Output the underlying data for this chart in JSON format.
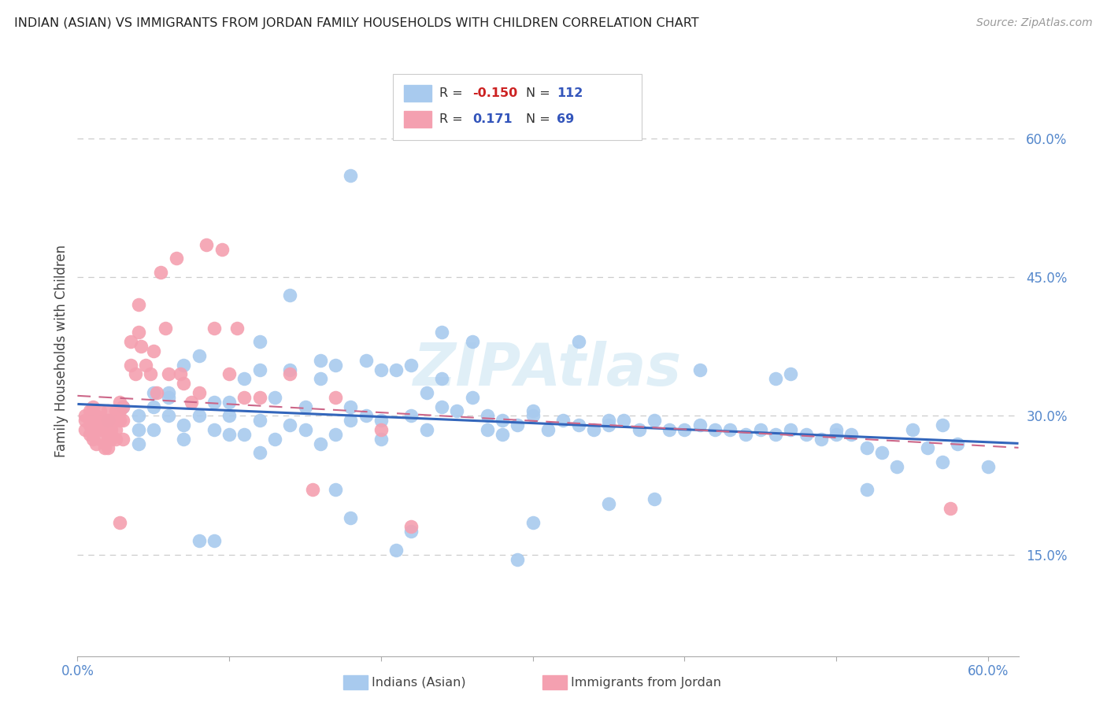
{
  "title": "INDIAN (ASIAN) VS IMMIGRANTS FROM JORDAN FAMILY HOUSEHOLDS WITH CHILDREN CORRELATION CHART",
  "source": "Source: ZipAtlas.com",
  "ylabel": "Family Households with Children",
  "xlim": [
    0.0,
    0.62
  ],
  "ylim": [
    0.04,
    0.7
  ],
  "ytick_labels_right": [
    "60.0%",
    "45.0%",
    "30.0%",
    "15.0%"
  ],
  "ytick_positions_right": [
    0.6,
    0.45,
    0.3,
    0.15
  ],
  "background_color": "#ffffff",
  "blue_color": "#a8caee",
  "pink_color": "#f4a0b0",
  "trend_blue_color": "#3366bb",
  "trend_pink_color": "#cc6688",
  "watermark": "ZIPAtlas",
  "blue_scatter_x": [
    0.02,
    0.03,
    0.04,
    0.04,
    0.05,
    0.05,
    0.05,
    0.06,
    0.06,
    0.07,
    0.07,
    0.07,
    0.08,
    0.08,
    0.09,
    0.09,
    0.1,
    0.1,
    0.1,
    0.11,
    0.11,
    0.12,
    0.12,
    0.12,
    0.13,
    0.13,
    0.14,
    0.14,
    0.15,
    0.15,
    0.16,
    0.16,
    0.17,
    0.17,
    0.18,
    0.18,
    0.19,
    0.2,
    0.2,
    0.21,
    0.22,
    0.22,
    0.23,
    0.23,
    0.24,
    0.24,
    0.25,
    0.26,
    0.27,
    0.27,
    0.28,
    0.28,
    0.29,
    0.3,
    0.3,
    0.31,
    0.32,
    0.33,
    0.34,
    0.35,
    0.35,
    0.36,
    0.37,
    0.38,
    0.39,
    0.4,
    0.41,
    0.42,
    0.43,
    0.44,
    0.45,
    0.46,
    0.47,
    0.48,
    0.49,
    0.5,
    0.51,
    0.52,
    0.53,
    0.54,
    0.55,
    0.56,
    0.57,
    0.57,
    0.26,
    0.17,
    0.09,
    0.24,
    0.3,
    0.2,
    0.18,
    0.16,
    0.38,
    0.21,
    0.47,
    0.52,
    0.46,
    0.35,
    0.29,
    0.22,
    0.14,
    0.18,
    0.06,
    0.04,
    0.08,
    0.12,
    0.19,
    0.33,
    0.41,
    0.5,
    0.58,
    0.6
  ],
  "blue_scatter_y": [
    0.295,
    0.31,
    0.3,
    0.27,
    0.325,
    0.285,
    0.31,
    0.325,
    0.3,
    0.355,
    0.29,
    0.275,
    0.365,
    0.3,
    0.315,
    0.285,
    0.315,
    0.3,
    0.28,
    0.34,
    0.28,
    0.38,
    0.35,
    0.295,
    0.32,
    0.275,
    0.35,
    0.29,
    0.31,
    0.285,
    0.34,
    0.27,
    0.355,
    0.28,
    0.31,
    0.295,
    0.36,
    0.35,
    0.295,
    0.35,
    0.355,
    0.3,
    0.325,
    0.285,
    0.34,
    0.31,
    0.305,
    0.32,
    0.285,
    0.3,
    0.295,
    0.28,
    0.29,
    0.305,
    0.3,
    0.285,
    0.295,
    0.29,
    0.285,
    0.295,
    0.29,
    0.295,
    0.285,
    0.295,
    0.285,
    0.285,
    0.29,
    0.285,
    0.285,
    0.28,
    0.285,
    0.28,
    0.285,
    0.28,
    0.275,
    0.28,
    0.28,
    0.265,
    0.26,
    0.245,
    0.285,
    0.265,
    0.25,
    0.29,
    0.38,
    0.22,
    0.165,
    0.39,
    0.185,
    0.275,
    0.19,
    0.36,
    0.21,
    0.155,
    0.345,
    0.22,
    0.34,
    0.205,
    0.145,
    0.175,
    0.43,
    0.56,
    0.32,
    0.285,
    0.165,
    0.26,
    0.3,
    0.38,
    0.35,
    0.285,
    0.27,
    0.245
  ],
  "pink_scatter_x": [
    0.005,
    0.005,
    0.005,
    0.008,
    0.008,
    0.008,
    0.01,
    0.01,
    0.01,
    0.01,
    0.012,
    0.012,
    0.015,
    0.015,
    0.015,
    0.015,
    0.018,
    0.018,
    0.018,
    0.02,
    0.02,
    0.02,
    0.02,
    0.02,
    0.022,
    0.022,
    0.022,
    0.025,
    0.025,
    0.025,
    0.025,
    0.028,
    0.028,
    0.028,
    0.028,
    0.03,
    0.03,
    0.03,
    0.035,
    0.035,
    0.038,
    0.04,
    0.04,
    0.042,
    0.045,
    0.048,
    0.05,
    0.052,
    0.055,
    0.058,
    0.06,
    0.065,
    0.068,
    0.07,
    0.075,
    0.08,
    0.085,
    0.09,
    0.095,
    0.1,
    0.105,
    0.11,
    0.12,
    0.14,
    0.155,
    0.17,
    0.2,
    0.22,
    0.575
  ],
  "pink_scatter_y": [
    0.295,
    0.3,
    0.285,
    0.305,
    0.29,
    0.28,
    0.31,
    0.295,
    0.285,
    0.275,
    0.3,
    0.27,
    0.305,
    0.295,
    0.285,
    0.275,
    0.295,
    0.285,
    0.265,
    0.305,
    0.295,
    0.285,
    0.275,
    0.265,
    0.295,
    0.285,
    0.275,
    0.305,
    0.295,
    0.285,
    0.275,
    0.315,
    0.305,
    0.295,
    0.185,
    0.31,
    0.295,
    0.275,
    0.38,
    0.355,
    0.345,
    0.42,
    0.39,
    0.375,
    0.355,
    0.345,
    0.37,
    0.325,
    0.455,
    0.395,
    0.345,
    0.47,
    0.345,
    0.335,
    0.315,
    0.325,
    0.485,
    0.395,
    0.48,
    0.345,
    0.395,
    0.32,
    0.32,
    0.345,
    0.22,
    0.32,
    0.285,
    0.18,
    0.2
  ]
}
